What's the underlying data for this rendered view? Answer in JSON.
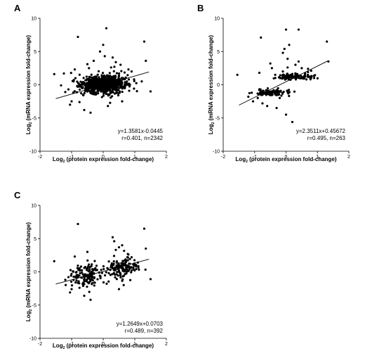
{
  "chart_data": [
    {
      "type": "scatter",
      "panel_label": "A",
      "xlabel_pre": "Log",
      "xlabel_sub": "2",
      "xlabel_post": " (protein expression fold-change)",
      "ylabel_pre": "Log",
      "ylabel_sub": "2",
      "ylabel_post": " (mRNA expression fold-change)",
      "xlim": [
        -2,
        2
      ],
      "ylim": [
        -10,
        10
      ],
      "xticks": [
        "-2",
        "-1",
        "0",
        "1",
        "2"
      ],
      "yticks": [
        "-10",
        "-5",
        "0",
        "5",
        "10"
      ],
      "stat_line1": "y=1.3581x-0.0445",
      "stat_line2": "r=0.401, n=2342",
      "regression": {
        "slope": 1.3581,
        "intercept": -0.0445,
        "x_range": [
          -1.5,
          1.45
        ]
      },
      "clusters": [
        {
          "cx": 0.0,
          "cy": 0.0,
          "sx": 0.32,
          "sy": 0.55,
          "n": 700
        },
        {
          "cx": 0.1,
          "cy": 0.3,
          "sx": 0.45,
          "sy": 0.9,
          "n": 200
        }
      ],
      "points": [
        [
          -1.55,
          1.6
        ],
        [
          -1.2,
          -1.1
        ],
        [
          -1.1,
          -0.7
        ],
        [
          -1.0,
          -2.5
        ],
        [
          -1.05,
          -3.0
        ],
        [
          -0.8,
          7.2
        ],
        [
          -0.75,
          -2.6
        ],
        [
          -0.6,
          -3.8
        ],
        [
          -0.5,
          3.1
        ],
        [
          -0.45,
          2.5
        ],
        [
          -0.4,
          -4.2
        ],
        [
          -0.3,
          3.6
        ],
        [
          0.1,
          8.5
        ],
        [
          0.0,
          6.0
        ],
        [
          -0.1,
          5.0
        ],
        [
          0.05,
          4.3
        ],
        [
          0.3,
          4.1
        ],
        [
          0.4,
          3.4
        ],
        [
          0.55,
          3.0
        ],
        [
          0.6,
          -2.5
        ],
        [
          0.8,
          2.3
        ],
        [
          1.3,
          6.5
        ],
        [
          1.35,
          3.6
        ],
        [
          1.5,
          -1.0
        ],
        [
          0.9,
          2.0
        ],
        [
          -0.9,
          2.3
        ],
        [
          0.25,
          2.6
        ],
        [
          0.15,
          -3.2
        ]
      ]
    },
    {
      "type": "scatter",
      "panel_label": "B",
      "xlabel_pre": "Log",
      "xlabel_sub": "2",
      "xlabel_post": " (protein expression fold-change)",
      "ylabel_pre": "Log",
      "ylabel_sub": "2",
      "ylabel_post": " (mRNA expression fold-change)",
      "xlim": [
        -2,
        2
      ],
      "ylim": [
        -10,
        10
      ],
      "xticks": [
        "-2",
        "-1",
        "0",
        "1",
        "2"
      ],
      "yticks": [
        "-10",
        "-5",
        "0",
        "5",
        "10"
      ],
      "stat_line1": "y=2.3511x+0.45672",
      "stat_line2": "r=0.495, n=263",
      "regression": {
        "slope": 2.3511,
        "intercept": 0.45672,
        "x_range": [
          -1.5,
          1.35
        ]
      },
      "clusters": [
        {
          "cx": -0.45,
          "cy": -1.2,
          "sx": 0.3,
          "sy": 0.25,
          "n": 100
        },
        {
          "cx": 0.35,
          "cy": 1.2,
          "sx": 0.3,
          "sy": 0.25,
          "n": 100
        }
      ],
      "points": [
        [
          -1.55,
          1.5
        ],
        [
          -1.2,
          -1.8
        ],
        [
          -1.05,
          -2.5
        ],
        [
          -0.9,
          -2.0
        ],
        [
          -0.8,
          7.1
        ],
        [
          -0.75,
          -2.8
        ],
        [
          -0.6,
          -3.2
        ],
        [
          -0.5,
          3.2
        ],
        [
          -0.45,
          2.5
        ],
        [
          -0.3,
          -3.5
        ],
        [
          -0.2,
          -2.0
        ],
        [
          -0.1,
          4.8
        ],
        [
          0.0,
          8.3
        ],
        [
          -0.05,
          5.4
        ],
        [
          0.05,
          3.9
        ],
        [
          0.1,
          6.0
        ],
        [
          0.0,
          -4.5
        ],
        [
          0.2,
          -5.6
        ],
        [
          0.4,
          8.3
        ],
        [
          0.4,
          3.5
        ],
        [
          0.5,
          2.5
        ],
        [
          0.3,
          3.0
        ],
        [
          0.7,
          2.4
        ],
        [
          0.8,
          2.1
        ],
        [
          1.3,
          6.5
        ],
        [
          1.35,
          3.5
        ],
        [
          -0.1,
          2.0
        ],
        [
          0.05,
          2.6
        ],
        [
          0.7,
          1.9
        ],
        [
          -0.85,
          1.8
        ]
      ]
    },
    {
      "type": "scatter",
      "panel_label": "C",
      "xlabel_pre": "Log",
      "xlabel_sub": "2",
      "xlabel_post": " (protein expression fold-change)",
      "ylabel_pre": "Log",
      "ylabel_sub": "2",
      "ylabel_post": " (mRNA expression fold-change)",
      "xlim": [
        -2,
        2
      ],
      "ylim": [
        -10,
        10
      ],
      "xticks": [
        "-2",
        "-1",
        "0",
        "1",
        "2"
      ],
      "yticks": [
        "-10",
        "-5",
        "0",
        "5",
        "10"
      ],
      "stat_line1": "y=1.2649x+0.0703",
      "stat_line2": "r=0.489, n=392",
      "regression": {
        "slope": 1.2649,
        "intercept": 0.0703,
        "x_range": [
          -1.5,
          1.45
        ]
      },
      "clusters": [
        {
          "cx": -0.55,
          "cy": -0.6,
          "sx": 0.25,
          "sy": 0.85,
          "n": 140
        },
        {
          "cx": 0.6,
          "cy": 0.6,
          "sx": 0.25,
          "sy": 0.85,
          "n": 140
        }
      ],
      "points": [
        [
          -1.55,
          1.6
        ],
        [
          -1.2,
          -1.2
        ],
        [
          -1.1,
          -0.8
        ],
        [
          -1.0,
          -2.6
        ],
        [
          -1.05,
          -3.1
        ],
        [
          -0.8,
          7.2
        ],
        [
          -0.75,
          -2.4
        ],
        [
          -0.6,
          -3.6
        ],
        [
          -0.5,
          3.0
        ],
        [
          -0.4,
          -4.2
        ],
        [
          -0.9,
          2.3
        ],
        [
          -0.7,
          0.8
        ],
        [
          0.3,
          5.2
        ],
        [
          0.35,
          4.6
        ],
        [
          0.4,
          3.3
        ],
        [
          0.5,
          3.7
        ],
        [
          0.6,
          4.0
        ],
        [
          0.8,
          2.6
        ],
        [
          0.9,
          2.2
        ],
        [
          1.3,
          6.5
        ],
        [
          1.35,
          3.5
        ],
        [
          1.5,
          -1.1
        ],
        [
          0.65,
          -2.0
        ],
        [
          0.5,
          -2.6
        ],
        [
          1.1,
          1.4
        ]
      ]
    }
  ]
}
